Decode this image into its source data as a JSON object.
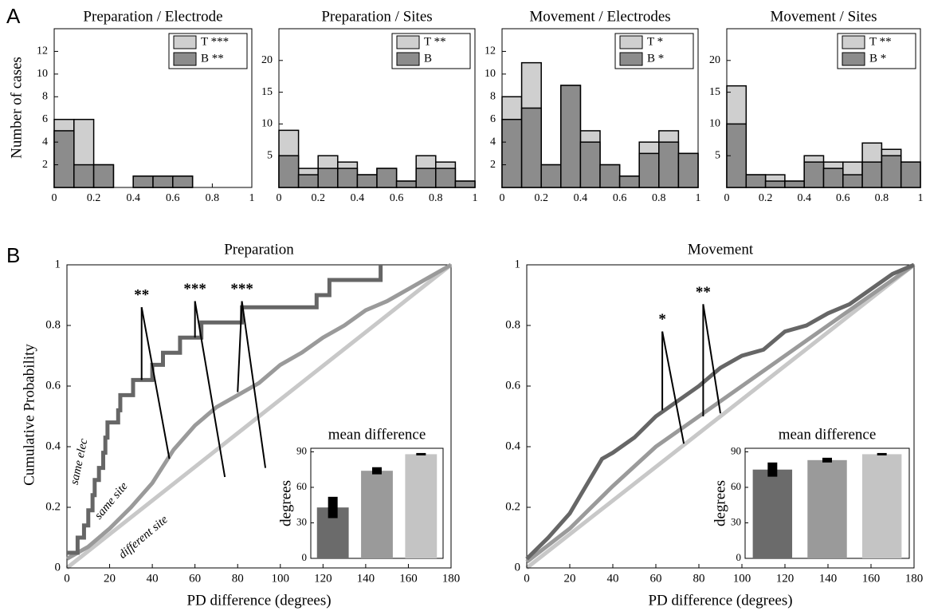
{
  "panel_labels": [
    "A",
    "B"
  ],
  "chart_data": [
    {
      "type": "histogram",
      "title": "Preparation / Electrode",
      "ylabel": "Number of cases",
      "bins": [
        0,
        0.1,
        0.2,
        0.3,
        0.4,
        0.5,
        0.6,
        0.7,
        0.8,
        0.9,
        1
      ],
      "series": [
        {
          "name": "T ***",
          "color": "#cfcfcf",
          "values": [
            6,
            6,
            2,
            0,
            1,
            1,
            1,
            0,
            0,
            0
          ]
        },
        {
          "name": "B **",
          "color": "#8c8c8c",
          "values": [
            5,
            2,
            2,
            0,
            1,
            1,
            1,
            0,
            0,
            0
          ]
        }
      ],
      "xlim": [
        0,
        1
      ],
      "xticks": [
        0,
        0.2,
        0.4,
        0.6,
        0.8,
        1
      ],
      "ylim": [
        0,
        14
      ],
      "yticks": [
        2,
        4,
        6,
        8,
        10,
        12
      ]
    },
    {
      "type": "histogram",
      "title": "Preparation / Sites",
      "bins": [
        0,
        0.1,
        0.2,
        0.3,
        0.4,
        0.5,
        0.6,
        0.7,
        0.8,
        0.9,
        1
      ],
      "series": [
        {
          "name": "T **",
          "color": "#cfcfcf",
          "values": [
            9,
            3,
            5,
            4,
            2,
            3,
            1,
            5,
            4,
            1
          ]
        },
        {
          "name": "B",
          "color": "#8c8c8c",
          "values": [
            5,
            2,
            3,
            3,
            2,
            3,
            1,
            3,
            3,
            1
          ]
        }
      ],
      "xlim": [
        0,
        1
      ],
      "xticks": [
        0,
        0.2,
        0.4,
        0.6,
        0.8,
        1
      ],
      "ylim": [
        0,
        25
      ],
      "yticks": [
        5,
        10,
        15,
        20
      ]
    },
    {
      "type": "histogram",
      "title": "Movement / Electrodes",
      "bins": [
        0,
        0.1,
        0.2,
        0.3,
        0.4,
        0.5,
        0.6,
        0.7,
        0.8,
        0.9,
        1
      ],
      "series": [
        {
          "name": "T *",
          "color": "#cfcfcf",
          "values": [
            8,
            11,
            2,
            9,
            5,
            2,
            1,
            4,
            5,
            3
          ]
        },
        {
          "name": "B *",
          "color": "#8c8c8c",
          "values": [
            6,
            7,
            2,
            9,
            4,
            2,
            1,
            3,
            4,
            3
          ]
        }
      ],
      "xlim": [
        0,
        1
      ],
      "xticks": [
        0,
        0.2,
        0.4,
        0.6,
        0.8,
        1
      ],
      "ylim": [
        0,
        14
      ],
      "yticks": [
        2,
        4,
        6,
        8,
        10,
        12
      ]
    },
    {
      "type": "histogram",
      "title": "Movement / Sites",
      "bins": [
        0,
        0.1,
        0.2,
        0.3,
        0.4,
        0.5,
        0.6,
        0.7,
        0.8,
        0.9,
        1
      ],
      "series": [
        {
          "name": "T **",
          "color": "#cfcfcf",
          "values": [
            16,
            2,
            2,
            1,
            5,
            4,
            4,
            7,
            6,
            4
          ]
        },
        {
          "name": "B *",
          "color": "#8c8c8c",
          "values": [
            10,
            2,
            1,
            1,
            4,
            3,
            2,
            4,
            5,
            4
          ]
        }
      ],
      "xlim": [
        0,
        1
      ],
      "xticks": [
        0,
        0.2,
        0.4,
        0.6,
        0.8,
        1
      ],
      "ylim": [
        0,
        25
      ],
      "yticks": [
        5,
        10,
        15,
        20
      ]
    },
    {
      "type": "line",
      "title": "Preparation",
      "xlabel": "PD difference (degrees)",
      "ylabel": "Cumulative Probability",
      "xlim": [
        0,
        180
      ],
      "xticks": [
        0,
        20,
        40,
        60,
        80,
        100,
        120,
        140,
        160,
        180
      ],
      "ylim": [
        0,
        1
      ],
      "yticks": [
        0,
        0.2,
        0.4,
        0.6,
        0.8,
        1
      ],
      "series": [
        {
          "name": "same elec",
          "color": "#666666",
          "x": [
            0,
            5,
            5,
            8,
            8,
            10,
            10,
            12,
            12,
            13,
            13,
            15,
            15,
            17,
            17,
            18,
            18,
            19,
            19,
            24,
            24,
            25,
            25,
            31,
            31,
            40,
            40,
            45,
            45,
            53,
            53,
            63,
            63,
            82,
            82,
            117,
            117,
            123,
            123,
            147,
            147
          ],
          "values": [
            0.05,
            0.05,
            0.1,
            0.1,
            0.14,
            0.14,
            0.19,
            0.19,
            0.24,
            0.24,
            0.29,
            0.29,
            0.33,
            0.33,
            0.38,
            0.38,
            0.43,
            0.43,
            0.48,
            0.48,
            0.52,
            0.52,
            0.57,
            0.57,
            0.62,
            0.62,
            0.67,
            0.67,
            0.71,
            0.71,
            0.76,
            0.76,
            0.81,
            0.81,
            0.86,
            0.86,
            0.9,
            0.9,
            0.95,
            0.95,
            1
          ]
        },
        {
          "name": "same site",
          "color": "#9a9a9a",
          "x": [
            0,
            10,
            20,
            30,
            40,
            50,
            60,
            70,
            80,
            90,
            100,
            110,
            120,
            130,
            140,
            150,
            160,
            170,
            180
          ],
          "values": [
            0.03,
            0.07,
            0.13,
            0.2,
            0.28,
            0.39,
            0.47,
            0.53,
            0.57,
            0.61,
            0.67,
            0.71,
            0.76,
            0.8,
            0.85,
            0.88,
            0.92,
            0.96,
            1
          ]
        },
        {
          "name": "different site",
          "color": "#c8c8c8",
          "x": [
            0,
            90,
            180
          ],
          "values": [
            0,
            0.5,
            1
          ]
        }
      ],
      "annotations": [
        "**",
        "***",
        "***"
      ],
      "inset": {
        "type": "bar",
        "title": "mean difference",
        "ylabel": "degrees",
        "values": [
          43,
          74,
          88
        ],
        "errors": [
          9,
          3,
          1
        ],
        "colors": [
          "#6b6b6b",
          "#9a9a9a",
          "#c4c4c4"
        ],
        "ylim": [
          0,
          93
        ],
        "yticks": [
          0,
          30,
          60,
          90
        ]
      }
    },
    {
      "type": "line",
      "title": "Movement",
      "xlabel": "PD difference (degrees)",
      "xlim": [
        0,
        180
      ],
      "xticks": [
        0,
        20,
        40,
        60,
        80,
        100,
        120,
        140,
        160,
        180
      ],
      "ylim": [
        0,
        1
      ],
      "yticks": [
        0,
        0.2,
        0.4,
        0.6,
        0.8,
        1
      ],
      "series": [
        {
          "color": "#666666",
          "x": [
            0,
            10,
            20,
            30,
            35,
            40,
            50,
            60,
            70,
            80,
            90,
            100,
            110,
            120,
            130,
            140,
            150,
            160,
            170,
            180
          ],
          "values": [
            0.03,
            0.1,
            0.18,
            0.3,
            0.36,
            0.38,
            0.43,
            0.5,
            0.55,
            0.6,
            0.66,
            0.7,
            0.72,
            0.78,
            0.8,
            0.84,
            0.87,
            0.92,
            0.97,
            1
          ]
        },
        {
          "color": "#9a9a9a",
          "x": [
            0,
            20,
            40,
            60,
            80,
            100,
            120,
            140,
            160,
            180
          ],
          "values": [
            0.02,
            0.13,
            0.27,
            0.4,
            0.5,
            0.6,
            0.7,
            0.8,
            0.9,
            1
          ]
        },
        {
          "color": "#c8c8c8",
          "x": [
            0,
            90,
            180
          ],
          "values": [
            0,
            0.5,
            1
          ]
        }
      ],
      "annotations": [
        "*",
        "**"
      ],
      "inset": {
        "type": "bar",
        "title": "mean difference",
        "ylabel": "degrees",
        "values": [
          75,
          83,
          88
        ],
        "errors": [
          6,
          2,
          1
        ],
        "colors": [
          "#6b6b6b",
          "#9a9a9a",
          "#c4c4c4"
        ],
        "ylim": [
          0,
          93
        ],
        "yticks": [
          0,
          30,
          60,
          90
        ]
      }
    }
  ]
}
